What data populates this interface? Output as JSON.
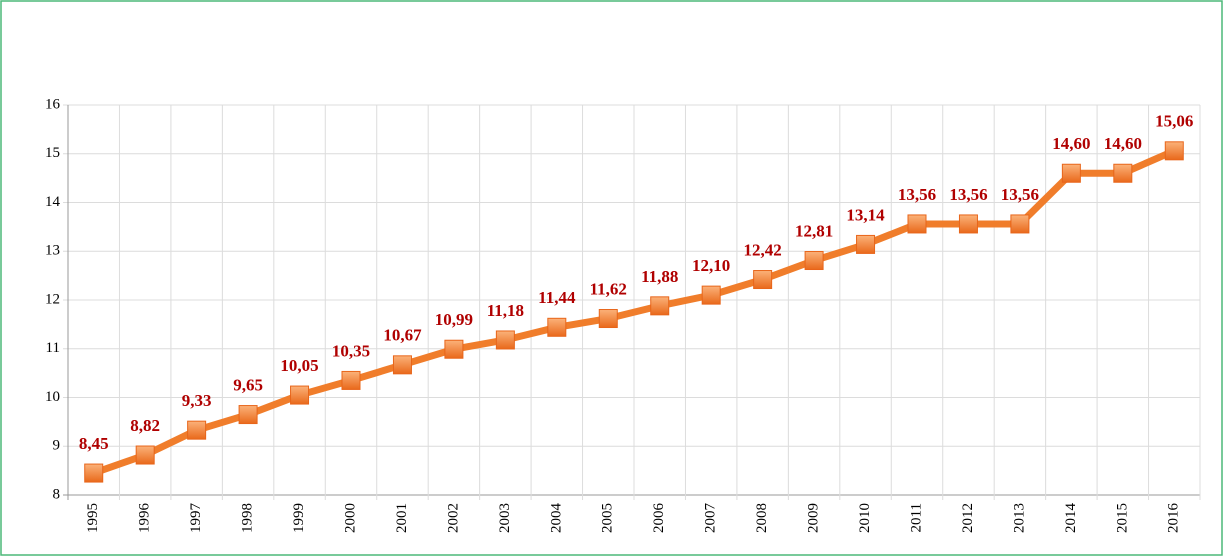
{
  "chart_data": {
    "type": "line",
    "categories": [
      "1995",
      "1996",
      "1997",
      "1998",
      "1999",
      "2000",
      "2001",
      "2002",
      "2003",
      "2004",
      "2005",
      "2006",
      "2007",
      "2008",
      "2009",
      "2010",
      "2011",
      "2012",
      "2013",
      "2014",
      "2015",
      "2016"
    ],
    "values": [
      8.45,
      8.82,
      9.33,
      9.65,
      10.05,
      10.35,
      10.67,
      10.99,
      11.18,
      11.44,
      11.62,
      11.88,
      12.1,
      12.42,
      12.81,
      13.14,
      13.56,
      13.56,
      13.56,
      14.6,
      14.6,
      15.06
    ],
    "value_labels": [
      "8,45",
      "8,82",
      "9,33",
      "9,65",
      "10,05",
      "10,35",
      "10,67",
      "10,99",
      "11,18",
      "11,44",
      "11,62",
      "11,88",
      "12,10",
      "12,42",
      "12,81",
      "13,14",
      "13,56",
      "13,56",
      "13,56",
      "14,60",
      "14,60",
      "15,06"
    ],
    "color": "#f07d2b",
    "ylim": [
      8,
      16
    ],
    "yticks": [
      8,
      9,
      10,
      11,
      12,
      13,
      14,
      15,
      16
    ],
    "grid": true
  }
}
